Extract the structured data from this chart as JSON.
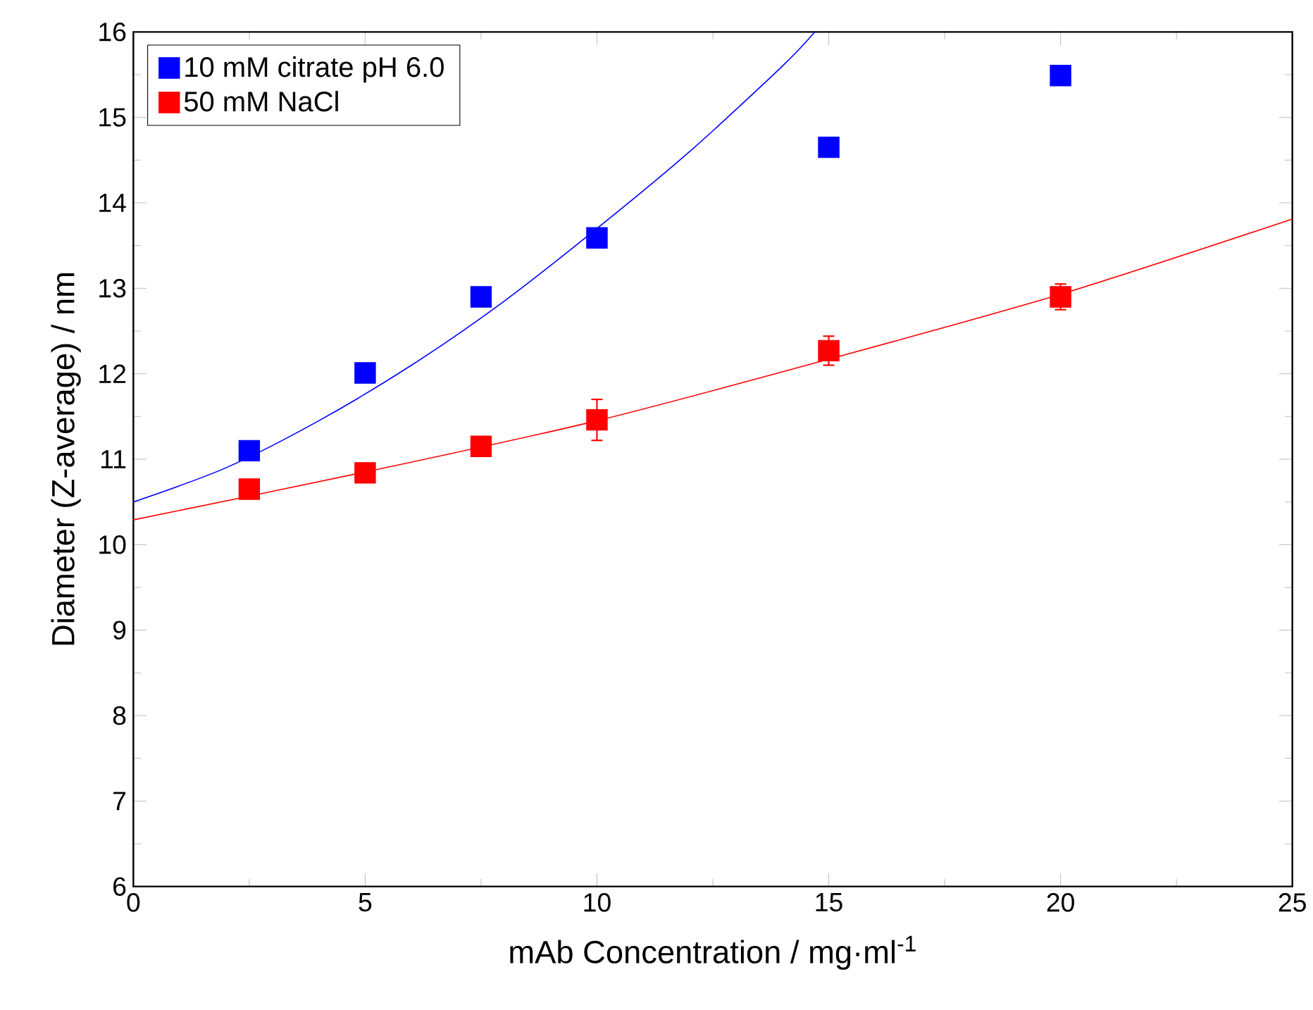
{
  "chart_data": {
    "type": "scatter",
    "xlabel": "mAb Concentration / mg·ml$^{-1}$",
    "ylabel": "Diameter (Z-average) / nm",
    "x": [
      2.5,
      5,
      7.5,
      10,
      15,
      20
    ],
    "series": [
      {
        "name": "10 mM citrate pH 6.0",
        "marker": "square",
        "color": "#0000ff",
        "values": [
          11.1,
          12.01,
          12.9,
          13.59,
          14.65,
          15.49
        ]
      },
      {
        "name": "50 mM NaCl",
        "marker": "square",
        "color": "#ff0000",
        "values": [
          10.65,
          10.84,
          11.15,
          11.46,
          12.27,
          12.9
        ],
        "errors": [
          null,
          null,
          null,
          0.24,
          0.17,
          0.15
        ]
      },
      {
        "type": "line",
        "marker": "none",
        "color": "#0000ff",
        "x": [
          0,
          2,
          4,
          6,
          8,
          10,
          12,
          14,
          14.7
        ],
        "values": [
          10.5,
          10.9,
          11.45,
          12.1,
          12.85,
          13.7,
          14.6,
          15.6,
          16.0
        ]
      },
      {
        "type": "line",
        "marker": "none",
        "color": "#ff0000",
        "x": [
          0,
          5,
          10,
          15,
          20,
          25
        ],
        "values": [
          10.29,
          10.85,
          11.45,
          12.17,
          12.93,
          13.81
        ]
      }
    ],
    "legend": "top left",
    "grid": false,
    "xlim": [
      0,
      25
    ],
    "xticks": [
      0,
      5,
      10,
      15,
      20,
      25
    ],
    "ylim": [
      6,
      16
    ],
    "yticks": [
      6,
      7,
      8,
      9,
      10,
      11,
      12,
      13,
      14,
      15,
      16
    ]
  }
}
